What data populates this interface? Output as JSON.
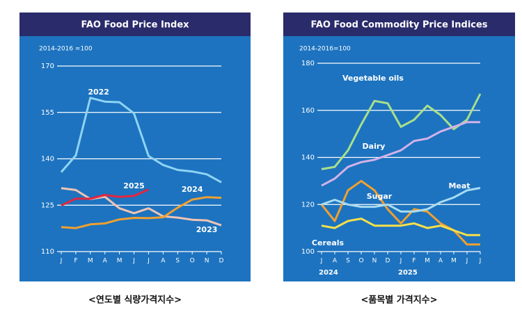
{
  "chart_data": [
    {
      "type": "line",
      "title": "FAO Food Price Index",
      "subtitle": "2014-2016 =100",
      "caption": "<연도별 식량가격지수>",
      "categories": [
        "J",
        "F",
        "M",
        "A",
        "M",
        "J",
        "J",
        "A",
        "S",
        "O",
        "N",
        "D"
      ],
      "ylim": [
        110,
        170
      ],
      "yticks": [
        110,
        125,
        140,
        155,
        170
      ],
      "grid": true,
      "series": [
        {
          "name": "2022",
          "color": "#8fd4f5",
          "values": [
            135.7,
            141.1,
            159.7,
            158.5,
            158.3,
            154.7,
            140.9,
            138.0,
            136.4,
            135.9,
            135.0,
            132.4
          ]
        },
        {
          "name": "2023",
          "color": "#f0c4b4",
          "values": [
            130.5,
            129.9,
            127.0,
            127.7,
            124.0,
            122.4,
            124.0,
            121.4,
            121.0,
            120.3,
            120.1,
            118.5
          ]
        },
        {
          "name": "2024",
          "color": "#f0a030",
          "values": [
            117.9,
            117.6,
            118.8,
            119.1,
            120.4,
            120.9,
            120.8,
            121.1,
            124.2,
            126.8,
            127.6,
            127.4
          ]
        },
        {
          "name": "2025",
          "color": "#e3263f",
          "values": [
            124.9,
            127.1,
            127.1,
            128.3,
            127.7,
            128.0,
            130.1,
            null,
            null,
            null,
            null,
            null
          ]
        }
      ]
    },
    {
      "type": "line",
      "title": "FAO Food Commodity Price Indices",
      "subtitle": "2014-2016=100",
      "caption": "<품목별 가격지수>",
      "categories": [
        "J",
        "A",
        "S",
        "O",
        "N",
        "D",
        "J",
        "F",
        "M",
        "A",
        "M",
        "J",
        "J"
      ],
      "annotations": [
        "2024",
        "2025"
      ],
      "ylim": [
        100,
        180
      ],
      "yticks": [
        100,
        120,
        140,
        160,
        180
      ],
      "grid": true,
      "series": [
        {
          "name": "Vegetable oils",
          "color": "#a8e08c",
          "values": [
            135,
            136,
            143,
            154,
            164,
            163,
            153,
            156,
            162,
            158,
            152,
            156,
            167
          ]
        },
        {
          "name": "Dairy",
          "color": "#d4b2ea",
          "values": [
            128,
            131,
            136,
            138,
            139,
            141,
            143,
            147,
            148,
            151,
            153,
            155,
            155
          ]
        },
        {
          "name": "Sugar",
          "color": "#f0a030",
          "values": [
            120,
            113,
            126,
            130,
            126,
            118,
            112,
            118,
            117,
            112,
            109,
            103,
            103
          ]
        },
        {
          "name": "Meat",
          "color": "#a8dcf2",
          "values": [
            120,
            122,
            120,
            119,
            119,
            120,
            117,
            117,
            118,
            121,
            123,
            126,
            127
          ]
        },
        {
          "name": "Cereals",
          "color": "#f5e04a",
          "values": [
            111,
            110,
            113,
            114,
            111,
            111,
            111,
            112,
            110,
            111,
            109,
            107,
            107
          ]
        }
      ]
    }
  ]
}
